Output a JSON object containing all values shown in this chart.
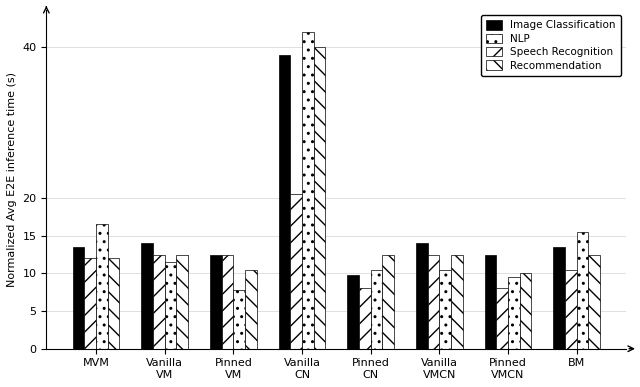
{
  "categories": [
    "MVM",
    "Vanilla\nVM",
    "Pinned\nVM",
    "Vanilla\nCN",
    "Pinned\nCN",
    "Vanilla\nVMCN",
    "Pinned\nVMCN",
    "BM"
  ],
  "series_order": [
    "Image Classification",
    "Speech Recognition",
    "NLP",
    "Recommendation"
  ],
  "series": {
    "Image Classification": [
      13.5,
      14.0,
      12.5,
      39.0,
      9.8,
      14.0,
      12.5,
      13.5
    ],
    "Speech Recognition": [
      12.0,
      12.5,
      12.5,
      20.5,
      8.0,
      12.5,
      8.0,
      10.5
    ],
    "NLP": [
      16.5,
      11.5,
      7.8,
      42.0,
      10.5,
      10.5,
      9.5,
      15.5
    ],
    "Recommendation": [
      12.0,
      12.5,
      10.5,
      40.0,
      12.5,
      12.5,
      10.0,
      12.5
    ]
  },
  "ylabel": "Normalized Avg E2E inference time (s)",
  "ylim": [
    0,
    45
  ],
  "yticks": [
    0,
    5,
    10,
    15,
    20,
    40
  ],
  "bar_colors": [
    "#000000",
    "#ffffff",
    "#ffffff",
    "#ffffff"
  ],
  "hatches": [
    "",
    "//",
    "..",
    "\\\\"
  ],
  "legend_labels": [
    "Image Classification",
    "NLP",
    "Speech Recognition",
    "Recommendation"
  ],
  "legend_colors": [
    "#000000",
    "#ffffff",
    "#ffffff",
    "#ffffff"
  ],
  "legend_hatches": [
    "",
    "..",
    "//",
    "\\\\"
  ],
  "edgecolor": "#000000",
  "bar_width": 0.17,
  "figsize": [
    6.4,
    3.87
  ]
}
